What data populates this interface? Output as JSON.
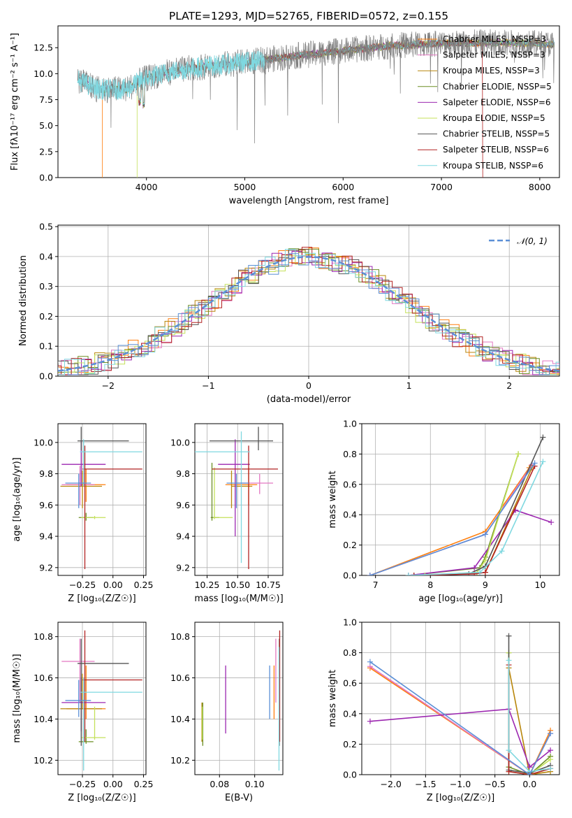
{
  "colors": {
    "cM": "#ff7f0e",
    "sM": "#e377c2",
    "kM": "#b8860b",
    "cE": "#6b8e23",
    "sE": "#9c27b0",
    "kE": "#c4e15a",
    "cS": "#555555",
    "sS": "#b22222",
    "kS": "#7fd8e0",
    "normal": "#5b8fd6",
    "blue": "#5b8fd6"
  },
  "chart_data": [
    {
      "id": "spectrum",
      "type": "line",
      "title": "PLATE=1293, MJD=52765, FIBERID=0572, z=0.155",
      "xlabel": "wavelength [Angstrom, rest frame]",
      "ylabel": "Flux [fλ10⁻¹⁷ erg cm⁻² s⁻¹ A⁻¹]",
      "xlim": [
        3100,
        8200
      ],
      "ylim": [
        0,
        14.6
      ],
      "xticks": [
        4000,
        5000,
        6000,
        7000,
        8000
      ],
      "yticks": [
        0.0,
        2.5,
        5.0,
        7.5,
        10.0,
        12.5
      ],
      "ytick_labels": [
        "0.0",
        "2.5",
        "5.0",
        "7.5",
        "10.0",
        "12.5"
      ],
      "legend_position": "top-right",
      "continuum": [
        [
          3300,
          9.4
        ],
        [
          3500,
          8.5
        ],
        [
          3800,
          8.5
        ],
        [
          3950,
          9.4
        ],
        [
          4200,
          10.1
        ],
        [
          4500,
          10.6
        ],
        [
          4800,
          10.9
        ],
        [
          5100,
          11.2
        ],
        [
          5500,
          11.7
        ],
        [
          6000,
          12.2
        ],
        [
          6500,
          12.7
        ],
        [
          7000,
          12.9
        ],
        [
          7500,
          13.0
        ],
        [
          8000,
          12.9
        ],
        [
          8150,
          12.8
        ]
      ],
      "series": [
        {
          "name": "Chabrier MILES, NSSP=3",
          "color_key": "cM",
          "drop_at": 3550
        },
        {
          "name": "Salpeter MILES, NSSP=3",
          "color_key": "sM"
        },
        {
          "name": "Kroupa MILES, NSSP=3",
          "color_key": "kM"
        },
        {
          "name": "Chabrier ELODIE, NSSP=5",
          "color_key": "cE"
        },
        {
          "name": "Salpeter ELODIE, NSSP=6",
          "color_key": "sE"
        },
        {
          "name": "Kroupa ELODIE, NSSP=5",
          "color_key": "kE",
          "drop_at": 3905
        },
        {
          "name": "Chabrier STELIB, NSSP=5",
          "color_key": "cS"
        },
        {
          "name": "Salpeter STELIB, NSSP=6",
          "color_key": "sS",
          "drop_at": 7420
        },
        {
          "name": "Kroupa STELIB, NSSP=6",
          "color_key": "kS"
        }
      ]
    },
    {
      "id": "residuals",
      "type": "line",
      "xlabel": "(data-model)/error",
      "ylabel": "Normed distribution",
      "xlim": [
        -2.5,
        2.5
      ],
      "ylim": [
        0,
        0.505
      ],
      "xticks": [
        -2,
        -1,
        0,
        1,
        2
      ],
      "xtick_labels": [
        "−2",
        "−1",
        "0",
        "1",
        "2"
      ],
      "yticks": [
        0.0,
        0.1,
        0.2,
        0.3,
        0.4,
        0.5
      ],
      "ytick_labels": [
        "0.0",
        "0.1",
        "0.2",
        "0.3",
        "0.4",
        "0.5"
      ],
      "grid": true,
      "legend_position": "top-right",
      "normal_label": "𝒩(0, 1)",
      "bin_width": 0.1
    },
    {
      "id": "age-Z",
      "type": "scatter",
      "xlabel": "Z [log₁₀(Z/Z☉)]",
      "ylabel": "age  [log₁₀(age/yr)]",
      "xlim": [
        -0.45,
        0.27
      ],
      "ylim": [
        9.15,
        10.12
      ],
      "xticks": [
        -0.25,
        0.0,
        0.25
      ],
      "xtick_labels": [
        "−0.25",
        "0.00",
        "0.25"
      ],
      "yticks": [
        9.2,
        9.4,
        9.6,
        9.8,
        10.0
      ],
      "ytick_labels": [
        "9.2",
        "9.4",
        "9.6",
        "9.8",
        "10.0"
      ],
      "grid": true,
      "points": [
        {
          "c": "cM",
          "x": -0.22,
          "xl": -0.38,
          "xh": -0.06,
          "y": 9.73,
          "yl": 9.62,
          "yh": 9.83
        },
        {
          "c": "sM",
          "x": -0.27,
          "xl": -0.42,
          "xh": -0.15,
          "y": 9.73,
          "yl": 9.6,
          "yh": 9.85
        },
        {
          "c": "kM",
          "x": -0.25,
          "xl": -0.43,
          "xh": -0.09,
          "y": 9.72,
          "yl": 9.58,
          "yh": 9.82
        },
        {
          "c": "cE",
          "x": -0.22,
          "xl": -0.28,
          "xh": -0.16,
          "y": 9.52,
          "yl": 9.5,
          "yh": 9.55
        },
        {
          "c": "sE",
          "x": -0.26,
          "xl": -0.42,
          "xh": -0.06,
          "y": 9.86,
          "yl": 9.72,
          "yh": 10.01
        },
        {
          "c": "kE",
          "x": -0.15,
          "xl": -0.26,
          "xh": -0.06,
          "y": 9.52,
          "yl": 9.51,
          "yh": 9.53
        },
        {
          "c": "cS",
          "x": -0.26,
          "xl": -0.29,
          "xh": 0.13,
          "y": 10.01,
          "yl": 9.95,
          "yh": 10.1
        },
        {
          "c": "sS",
          "x": -0.23,
          "xl": -0.25,
          "xh": 0.24,
          "y": 9.83,
          "yl": 9.19,
          "yh": 9.98
        },
        {
          "c": "kS",
          "x": -0.24,
          "xl": -0.27,
          "xh": 0.24,
          "y": 9.94,
          "yl": 9.72,
          "yh": 10.02
        },
        {
          "c": "blue",
          "x": -0.28,
          "xl": -0.39,
          "xh": -0.18,
          "y": 9.74,
          "yl": 9.58,
          "yh": 9.8
        }
      ]
    },
    {
      "id": "age-mass",
      "type": "scatter",
      "xlabel": "mass [log₁₀(M/M☉)]",
      "ylabel": "",
      "xlim": [
        10.15,
        10.87
      ],
      "ylim": [
        9.15,
        10.12
      ],
      "xticks": [
        10.25,
        10.5,
        10.75
      ],
      "xtick_labels": [
        "10.25",
        "10.50",
        "10.75"
      ],
      "yticks": [
        9.2,
        9.4,
        9.6,
        9.8,
        10.0
      ],
      "ytick_labels": [
        "9.2",
        "9.4",
        "9.6",
        "9.8",
        "10.0"
      ],
      "grid": true,
      "points": [
        {
          "c": "cM",
          "x": 10.59,
          "xl": 10.4,
          "xh": 10.66,
          "y": 9.73,
          "yl": 9.6,
          "yh": 9.84
        },
        {
          "c": "sM",
          "x": 10.68,
          "xl": 10.48,
          "xh": 10.79,
          "y": 9.74,
          "yl": 9.67,
          "yh": 9.8
        },
        {
          "c": "kM",
          "x": 10.45,
          "xl": 10.45,
          "xh": 10.62,
          "y": 9.72,
          "yl": 9.58,
          "yh": 9.82
        },
        {
          "c": "cE",
          "x": 10.29,
          "xl": 10.28,
          "xh": 10.35,
          "y": 9.52,
          "yl": 9.5,
          "yh": 9.87
        },
        {
          "c": "sE",
          "x": 10.48,
          "xl": 10.34,
          "xh": 10.6,
          "y": 9.86,
          "yl": 9.4,
          "yh": 10.02
        },
        {
          "c": "kE",
          "x": 10.31,
          "xl": 10.3,
          "xh": 10.46,
          "y": 9.52,
          "yl": 9.51,
          "yh": 9.84
        },
        {
          "c": "cS",
          "x": 10.67,
          "xl": 10.27,
          "xh": 10.79,
          "y": 10.01,
          "yl": 9.95,
          "yh": 10.1
        },
        {
          "c": "sS",
          "x": 10.59,
          "xl": 10.29,
          "xh": 10.83,
          "y": 9.83,
          "yl": 9.19,
          "yh": 9.98
        },
        {
          "c": "kS",
          "x": 10.53,
          "xl": 10.15,
          "xh": 10.6,
          "y": 9.94,
          "yl": 9.23,
          "yh": 10.07
        },
        {
          "c": "blue",
          "x": 10.49,
          "xl": 10.41,
          "xh": 10.59,
          "y": 9.74,
          "yl": 9.58,
          "yh": 9.8
        }
      ]
    },
    {
      "id": "mw-age",
      "type": "line",
      "xlabel": "age  [log₁₀(age/yr)]",
      "ylabel": "mass weight",
      "xlim": [
        6.75,
        10.35
      ],
      "ylim": [
        0,
        1.0
      ],
      "xticks": [
        7,
        8,
        9,
        10
      ],
      "xtick_labels": [
        "7",
        "8",
        "9",
        "10"
      ],
      "yticks": [
        0.0,
        0.2,
        0.4,
        0.6,
        0.8,
        1.0
      ],
      "ytick_labels": [
        "0.0",
        "0.2",
        "0.4",
        "0.6",
        "0.8",
        "1.0"
      ],
      "grid": true,
      "series": [
        {
          "c": "cM",
          "x": [
            6.9,
            9.0,
            9.8
          ],
          "y": [
            0.0,
            0.29,
            0.71
          ]
        },
        {
          "c": "sM",
          "x": [
            6.9,
            9.0,
            9.85
          ],
          "y": [
            0.0,
            0.27,
            0.73
          ]
        },
        {
          "c": "kM",
          "x": [
            7.6,
            9.0,
            9.85
          ],
          "y": [
            0.0,
            0.02,
            0.71
          ]
        },
        {
          "c": "cE",
          "x": [
            7.6,
            8.9,
            9.0,
            9.6
          ],
          "y": [
            0.0,
            0.05,
            0.12,
            0.8
          ]
        },
        {
          "c": "sE",
          "x": [
            7.6,
            8.8,
            9.55,
            10.2
          ],
          "y": [
            0.0,
            0.05,
            0.43,
            0.35
          ]
        },
        {
          "c": "kE",
          "x": [
            7.9,
            8.85,
            9.0,
            9.6
          ],
          "y": [
            0.0,
            0.02,
            0.1,
            0.8
          ]
        },
        {
          "c": "cS",
          "x": [
            7.7,
            8.7,
            9.0,
            10.05
          ],
          "y": [
            0.0,
            0.01,
            0.06,
            0.91
          ]
        },
        {
          "c": "sS",
          "x": [
            7.7,
            8.8,
            9.0,
            9.9
          ],
          "y": [
            0.0,
            0.01,
            0.02,
            0.72
          ]
        },
        {
          "c": "kS",
          "x": [
            7.6,
            8.9,
            9.3,
            10.05
          ],
          "y": [
            0.0,
            0.02,
            0.16,
            0.75
          ]
        },
        {
          "c": "blue",
          "x": [
            6.9,
            9.0,
            9.9
          ],
          "y": [
            0.0,
            0.27,
            0.74
          ]
        }
      ]
    },
    {
      "id": "mass-Z",
      "type": "scatter",
      "xlabel": "Z [log₁₀(Z/Z☉)]",
      "ylabel": "mass [log₁₀(M/M☉)]",
      "xlim": [
        -0.45,
        0.27
      ],
      "ylim": [
        10.13,
        10.87
      ],
      "xticks": [
        -0.25,
        0.0,
        0.25
      ],
      "xtick_labels": [
        "−0.25",
        "0.00",
        "0.25"
      ],
      "yticks": [
        10.2,
        10.4,
        10.6,
        10.8
      ],
      "ytick_labels": [
        "10.2",
        "10.4",
        "10.6",
        "10.8"
      ],
      "grid": true,
      "points": [
        {
          "c": "cM",
          "x": -0.22,
          "xl": -0.38,
          "xh": -0.06,
          "y": 10.45,
          "yl": 10.4,
          "yh": 10.66
        },
        {
          "c": "sM",
          "x": -0.27,
          "xl": -0.42,
          "xh": -0.15,
          "y": 10.68,
          "yl": 10.48,
          "yh": 10.79
        },
        {
          "c": "kM",
          "x": -0.25,
          "xl": -0.43,
          "xh": -0.09,
          "y": 10.45,
          "yl": 10.45,
          "yh": 10.62
        },
        {
          "c": "cE",
          "x": -0.22,
          "xl": -0.28,
          "xh": -0.16,
          "y": 10.29,
          "yl": 10.28,
          "yh": 10.35
        },
        {
          "c": "sE",
          "x": -0.26,
          "xl": -0.42,
          "xh": -0.06,
          "y": 10.48,
          "yl": 10.34,
          "yh": 10.6
        },
        {
          "c": "kE",
          "x": -0.15,
          "xl": -0.26,
          "xh": -0.06,
          "y": 10.31,
          "yl": 10.3,
          "yh": 10.46
        },
        {
          "c": "cS",
          "x": -0.26,
          "xl": -0.29,
          "xh": 0.13,
          "y": 10.67,
          "yl": 10.27,
          "yh": 10.79
        },
        {
          "c": "sS",
          "x": -0.23,
          "xl": -0.25,
          "xh": 0.24,
          "y": 10.59,
          "yl": 10.29,
          "yh": 10.83
        },
        {
          "c": "kS",
          "x": -0.24,
          "xl": -0.27,
          "xh": 0.24,
          "y": 10.53,
          "yl": 10.15,
          "yh": 10.6
        },
        {
          "c": "blue",
          "x": -0.28,
          "xl": -0.39,
          "xh": -0.18,
          "y": 10.49,
          "yl": 10.41,
          "yh": 10.59
        }
      ]
    },
    {
      "id": "mass-EBV",
      "type": "scatter",
      "xlabel": "E(B-V)",
      "ylabel": "",
      "xlim": [
        0.066,
        0.116
      ],
      "ylim": [
        10.13,
        10.87
      ],
      "xticks": [
        0.08,
        0.1
      ],
      "xtick_labels": [
        "0.08",
        "0.10"
      ],
      "yticks": [
        10.2,
        10.4,
        10.6,
        10.8
      ],
      "ytick_labels": [
        "10.2",
        "10.4",
        "10.6",
        "10.8"
      ],
      "grid": true,
      "points": [
        {
          "c": "cM",
          "x": 0.111,
          "yl": 10.4,
          "yh": 10.66
        },
        {
          "c": "sM",
          "x": 0.112,
          "yl": 10.48,
          "yh": 10.79
        },
        {
          "c": "kM",
          "x": 0.07,
          "yl": 10.29,
          "yh": 10.48
        },
        {
          "c": "cE",
          "x": 0.0705,
          "yl": 10.27,
          "yh": 10.48
        },
        {
          "c": "sE",
          "x": 0.0835,
          "yl": 10.33,
          "yh": 10.66
        },
        {
          "c": "kE",
          "x": 0.0702,
          "yl": 10.3,
          "yh": 10.46
        },
        {
          "c": "cS",
          "x": 0.114,
          "yl": 10.27,
          "yh": 10.79
        },
        {
          "c": "sS",
          "x": 0.1142,
          "yl": 10.29,
          "yh": 10.83
        },
        {
          "c": "kS",
          "x": 0.1138,
          "yl": 10.15,
          "yh": 10.75
        },
        {
          "c": "blue",
          "x": 0.1085,
          "yl": 10.4,
          "yh": 10.66
        }
      ]
    },
    {
      "id": "mw-Z",
      "type": "line",
      "xlabel": "Z [log₁₀(Z/Z☉)]",
      "ylabel": "mass weight",
      "xlim": [
        -2.42,
        0.43
      ],
      "ylim": [
        0,
        1.0
      ],
      "xticks": [
        -2.0,
        -1.5,
        -1.0,
        -0.5,
        0.0
      ],
      "xtick_labels": [
        "−2.0",
        "−1.5",
        "−1.0",
        "−0.5",
        "0.0"
      ],
      "yticks": [
        0.0,
        0.2,
        0.4,
        0.6,
        0.8,
        1.0
      ],
      "ytick_labels": [
        "0.0",
        "0.2",
        "0.4",
        "0.6",
        "0.8",
        "1.0"
      ],
      "grid": true,
      "series": [
        {
          "c": "cM",
          "x": [
            -2.3,
            0.0,
            0.3
          ],
          "y": [
            0.7,
            0.0,
            0.29
          ]
        },
        {
          "c": "sM",
          "x": [
            -2.3,
            0.0,
            0.3
          ],
          "y": [
            0.71,
            0.0,
            0.27
          ]
        },
        {
          "c": "kM",
          "x": [
            -0.3,
            0.0,
            0.3
          ],
          "y": [
            0.7,
            0.0,
            0.02
          ]
        },
        {
          "c": "cE",
          "x": [
            -0.3,
            -0.3,
            0.0,
            0.3
          ],
          "y": [
            0.8,
            0.05,
            0.0,
            0.12
          ]
        },
        {
          "c": "sE",
          "x": [
            -2.3,
            -0.3,
            0.0,
            0.3
          ],
          "y": [
            0.35,
            0.43,
            0.05,
            0.16
          ]
        },
        {
          "c": "kE",
          "x": [
            -0.3,
            -0.3,
            0.0,
            0.3
          ],
          "y": [
            0.8,
            0.02,
            0.0,
            0.1
          ]
        },
        {
          "c": "cS",
          "x": [
            -0.3,
            -0.3,
            0.0,
            0.3
          ],
          "y": [
            0.91,
            0.03,
            0.01,
            0.06
          ]
        },
        {
          "c": "sS",
          "x": [
            -0.3,
            -0.3,
            0.0,
            0.3
          ],
          "y": [
            0.72,
            0.02,
            0.0,
            0.04
          ]
        },
        {
          "c": "kS",
          "x": [
            -0.3,
            -0.3,
            0.0,
            0.3
          ],
          "y": [
            0.75,
            0.16,
            0.02,
            0.04
          ]
        },
        {
          "c": "blue",
          "x": [
            -2.3,
            0.0,
            0.3
          ],
          "y": [
            0.74,
            0.0,
            0.27
          ]
        }
      ]
    }
  ]
}
